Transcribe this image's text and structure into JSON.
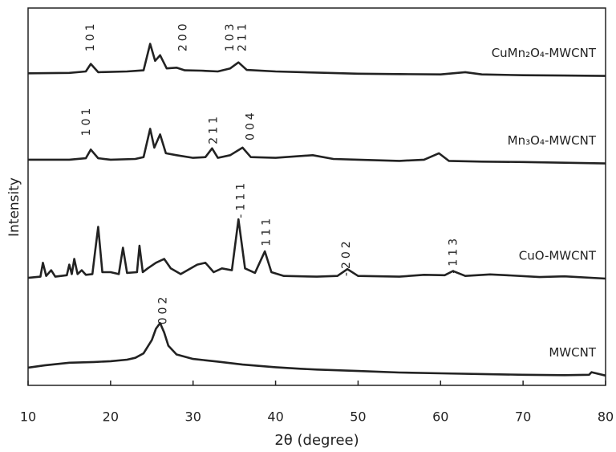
{
  "chart_data": {
    "type": "line",
    "xlabel": "2θ (degree)",
    "ylabel": "Intensity",
    "xlim": [
      10,
      80
    ],
    "xticks": [
      10,
      20,
      30,
      40,
      50,
      60,
      70,
      80
    ],
    "ylim": [
      0,
      100
    ],
    "series": [
      {
        "name": "CuMn₂O₄-MWCNT",
        "color": "#222222",
        "x": [
          10,
          15,
          17,
          17.6,
          18.5,
          22,
          24,
          24.8,
          25.4,
          26,
          26.8,
          28,
          29,
          31,
          33,
          34.5,
          35.5,
          36.5,
          40,
          45,
          50,
          55,
          60,
          63,
          65,
          70,
          75,
          80
        ],
        "values": [
          82.7,
          82.8,
          83.2,
          85.2,
          83,
          83.2,
          83.5,
          90.5,
          86,
          87.5,
          84,
          84.2,
          83.5,
          83.4,
          83.2,
          84,
          85.6,
          83.6,
          83.2,
          82.9,
          82.6,
          82.5,
          82.4,
          83,
          82.4,
          82.2,
          82.1,
          82
        ]
      },
      {
        "name": "Mn₃O₄-MWCNT",
        "color": "#222222",
        "x": [
          10,
          15,
          17,
          17.6,
          18.5,
          20,
          23,
          24,
          24.8,
          25.3,
          26,
          26.7,
          28,
          30,
          31.5,
          32.3,
          33,
          34.5,
          36,
          37,
          40,
          44.5,
          47,
          50,
          55,
          58,
          59.8,
          61,
          65,
          70,
          75,
          80
        ],
        "values": [
          59.8,
          59.8,
          60.2,
          62.5,
          60.2,
          59.8,
          60,
          60.5,
          68,
          63,
          66.5,
          61.5,
          61,
          60.3,
          60.5,
          62.8,
          60.3,
          61,
          63,
          60.5,
          60.3,
          61,
          60,
          59.8,
          59.5,
          59.8,
          61.5,
          59.5,
          59.3,
          59.2,
          59,
          58.8
        ]
      },
      {
        "name": "CuO-MWCNT",
        "color": "#222222",
        "x": [
          10,
          11.5,
          11.8,
          12.2,
          12.8,
          13.3,
          14.7,
          15,
          15.3,
          15.6,
          16,
          16.5,
          17,
          17.8,
          18.1,
          18.5,
          19,
          20,
          21,
          21.5,
          22,
          23.2,
          23.5,
          23.9,
          24.5,
          25.5,
          26.5,
          27.3,
          28.5,
          30.5,
          31.5,
          32.5,
          33.5,
          34.7,
          35.5,
          36.3,
          37.5,
          38.7,
          39.5,
          41,
          45,
          47.5,
          48.7,
          50,
          55,
          58,
          60.5,
          61.5,
          63,
          66,
          68,
          72,
          75,
          80
        ],
        "values": [
          28.5,
          28.8,
          32.5,
          29,
          30.5,
          28.8,
          29.2,
          32,
          29.5,
          33.5,
          29.5,
          30.5,
          29.3,
          29.5,
          35,
          42,
          30,
          30,
          29.5,
          36.5,
          29.8,
          30,
          37,
          30,
          31,
          32.5,
          33.5,
          31,
          29.5,
          32,
          32.5,
          30,
          31,
          30.5,
          44,
          31,
          29.8,
          35.5,
          30,
          29,
          28.8,
          29,
          30.8,
          29,
          28.8,
          29.3,
          29.2,
          30.3,
          29,
          29.4,
          29.2,
          28.7,
          28.9,
          28.3
        ]
      },
      {
        "name": "MWCNT",
        "color": "#222222",
        "x": [
          10,
          12,
          15,
          18,
          20,
          22,
          23,
          24,
          25,
          25.5,
          26,
          26.5,
          27,
          28,
          30,
          33,
          36,
          40,
          43,
          45,
          50,
          55,
          60,
          65,
          70,
          75,
          78,
          78.3,
          80
        ],
        "values": [
          4.7,
          5.3,
          6,
          6.2,
          6.4,
          6.8,
          7.3,
          8.5,
          12,
          15,
          16.5,
          14,
          10.5,
          8.2,
          7,
          6.3,
          5.5,
          4.8,
          4.4,
          4.2,
          3.8,
          3.4,
          3.2,
          3,
          2.8,
          2.7,
          2.8,
          3.5,
          2.6
        ]
      }
    ],
    "annotations": [
      {
        "text": "101",
        "x": 17.6,
        "y": 92.6
      },
      {
        "text": "200",
        "x": 28.8,
        "y": 92.6
      },
      {
        "text": "103",
        "x": 34.5,
        "y": 92.6
      },
      {
        "text": "211",
        "x": 36,
        "y": 92.6
      },
      {
        "text": "101",
        "x": 17.1,
        "y": 70.2
      },
      {
        "text": "211",
        "x": 32.5,
        "y": 68
      },
      {
        "text": "004",
        "x": 37,
        "y": 69
      },
      {
        "text": "-111",
        "x": 35.8,
        "y": 49.4
      },
      {
        "text": "111",
        "x": 38.9,
        "y": 41
      },
      {
        "text": "-202",
        "x": 48.6,
        "y": 34
      },
      {
        "text": "-113",
        "x": 61.6,
        "y": 34.7
      },
      {
        "text": "002",
        "x": 26.4,
        "y": 20.2
      }
    ]
  }
}
